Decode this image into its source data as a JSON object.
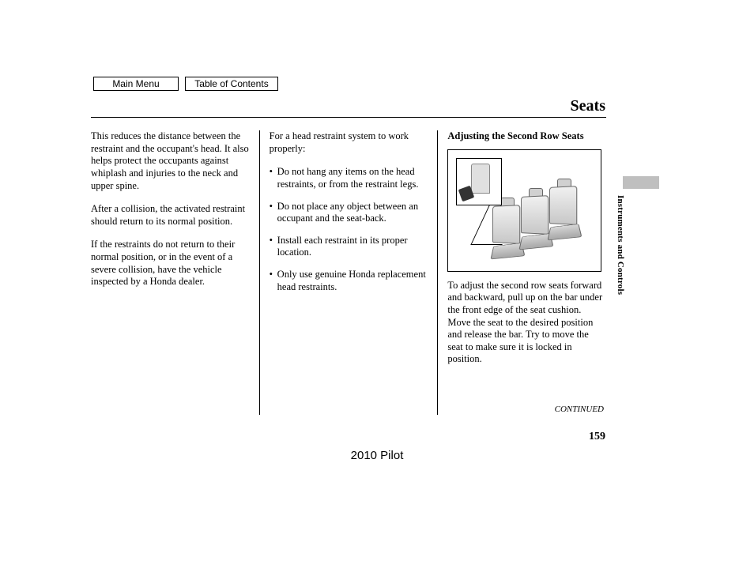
{
  "nav": {
    "main_menu": "Main Menu",
    "toc": "Table of Contents"
  },
  "page_title": "Seats",
  "side_label": "Instruments and Controls",
  "col1": {
    "p1": "This reduces the distance between the restraint and the occupant's head. It also helps protect the occupants against whiplash and injuries to the neck and upper spine.",
    "p2": "After a collision, the activated restraint should return to its normal position.",
    "p3": "If the restraints do not return to their normal position, or in the event of a severe collision, have the vehicle inspected by a Honda dealer."
  },
  "col2": {
    "intro": "For a head restraint system to work properly:",
    "items": [
      "Do not hang any items on the head restraints, or from the restraint legs.",
      "Do not place any object between an occupant and the seat-back.",
      "Install each restraint in its proper location.",
      "Only use genuine Honda replacement head restraints."
    ]
  },
  "col3": {
    "heading": "Adjusting the Second Row Seats",
    "body": "To adjust the second row seats forward and backward, pull up on the bar under the front edge of the seat cushion. Move the seat to the desired position and release the bar. Try to move the seat to make sure it is locked in position."
  },
  "continued": "CONTINUED",
  "page_number": "159",
  "model_year": "2010 Pilot"
}
